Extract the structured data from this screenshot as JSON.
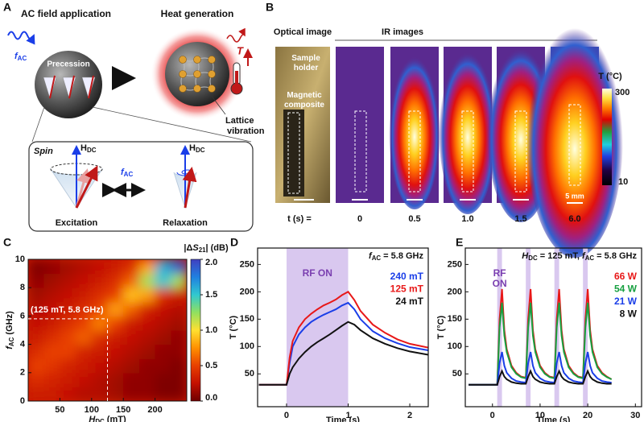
{
  "panel_a": {
    "label": "A",
    "left_title": "AC field application",
    "right_title": "Heat generation",
    "field": [
      "f",
      "AC"
    ],
    "sphere_label": "Precession",
    "temperature": "T",
    "lattice": [
      "Lattice",
      "vibration"
    ],
    "spin": "Spin",
    "h_left": [
      "H",
      "DC"
    ],
    "h_right": [
      "H",
      "DC"
    ],
    "f_center": [
      "f",
      "AC"
    ],
    "excitation": "Excitation",
    "relaxation": "Relaxation"
  },
  "panel_b": {
    "label": "B",
    "optical_title": "Optical image",
    "ir_title": "IR images",
    "holder": [
      "Sample",
      "holder"
    ],
    "composite": [
      "Magnetic",
      "composite"
    ],
    "colorbar_title": "T (°C)",
    "colorbar_max": "300",
    "colorbar_min": "10",
    "scale": "5 mm",
    "time_label": "t (s) =",
    "times": [
      "0",
      "0.5",
      "1.0",
      "1.5",
      "6.0"
    ]
  },
  "chart_data": [
    {
      "type": "heatmap",
      "panel": "C",
      "xlabel": [
        "H",
        "DC",
        " (mT)"
      ],
      "ylabel": [
        "f",
        "AC",
        " (GHz)"
      ],
      "xlim": [
        0,
        250
      ],
      "ylim": [
        0,
        10
      ],
      "xticks": [
        50,
        100,
        150,
        200
      ],
      "yticks": [
        0,
        2,
        4,
        6,
        8,
        10
      ],
      "xbins": [
        0,
        25,
        50,
        75,
        100,
        125,
        150,
        175,
        200,
        225,
        250
      ],
      "ybins": [
        0,
        1,
        2,
        3,
        4,
        5,
        6,
        7,
        8,
        9,
        10
      ],
      "z": [
        [
          0.3,
          0.3,
          0.25,
          0.2,
          0.2,
          0.15,
          0.1,
          0.1,
          0.05,
          0.05
        ],
        [
          0.4,
          0.35,
          0.3,
          0.25,
          0.2,
          0.15,
          0.1,
          0.1,
          0.05,
          0.05
        ],
        [
          0.5,
          0.45,
          0.35,
          0.3,
          0.25,
          0.2,
          0.15,
          0.1,
          0.1,
          0.05
        ],
        [
          0.4,
          0.5,
          0.5,
          0.35,
          0.3,
          0.25,
          0.2,
          0.15,
          0.1,
          0.1
        ],
        [
          0.3,
          0.4,
          0.5,
          0.6,
          0.4,
          0.3,
          0.25,
          0.2,
          0.15,
          0.1
        ],
        [
          0.25,
          0.3,
          0.4,
          0.5,
          0.7,
          0.5,
          0.3,
          0.25,
          0.2,
          0.15
        ],
        [
          0.2,
          0.25,
          0.3,
          0.4,
          0.5,
          0.8,
          0.6,
          0.35,
          0.25,
          0.2
        ],
        [
          0.15,
          0.2,
          0.25,
          0.3,
          0.4,
          0.5,
          0.9,
          0.8,
          0.4,
          0.3
        ],
        [
          0.1,
          0.15,
          0.2,
          0.25,
          0.3,
          0.4,
          0.6,
          1.2,
          1.5,
          1.2
        ],
        [
          0.05,
          0.1,
          0.15,
          0.2,
          0.25,
          0.3,
          0.4,
          0.8,
          1.6,
          1.9
        ]
      ],
      "zlim": [
        0,
        2
      ],
      "zticks": [
        {
          "value": 0,
          "label": "0.0"
        },
        {
          "value": 0.5,
          "label": "0.5"
        },
        {
          "value": 1,
          "label": "1.0"
        },
        {
          "value": 1.5,
          "label": "1.5"
        },
        {
          "value": 2,
          "label": "2.0"
        }
      ],
      "colorbar_label": [
        "|Δ",
        "S",
        "21",
        "| (dB)"
      ],
      "colormap": [
        "#6e0000",
        "#c41000",
        "#e84000",
        "#ff9000",
        "#ffe030",
        "#90e060",
        "#30c8d0",
        "#2080e0",
        "#4040c0"
      ],
      "marker": {
        "x": 125,
        "y": 5.8,
        "label": "(125 mT, 5.8 GHz)"
      }
    },
    {
      "type": "line",
      "panel": "D",
      "title": [
        "f",
        "AC",
        " = 5.8 GHz"
      ],
      "xlabel": "Time (s)",
      "ylabel": "T (°C)",
      "xlim": [
        -0.47,
        2.3
      ],
      "ylim": [
        -10,
        280
      ],
      "xticks": [
        0,
        1,
        2
      ],
      "yticks": [
        50,
        100,
        150,
        200,
        250
      ],
      "on_spans": [
        [
          0,
          1
        ]
      ],
      "on_label": [
        "RF ON"
      ],
      "on_color": "#d9c8ef",
      "legend": "upper right",
      "x": [
        -0.45,
        -0.2,
        0,
        0.05,
        0.1,
        0.2,
        0.3,
        0.4,
        0.5,
        0.6,
        0.7,
        0.8,
        0.9,
        1.0,
        1.1,
        1.2,
        1.4,
        1.6,
        1.8,
        2.0,
        2.3
      ],
      "series": [
        {
          "name": "240 mT",
          "color": "#1a3ee8",
          "values": [
            30,
            30,
            30,
            70,
            100,
            122,
            135,
            145,
            152,
            158,
            163,
            168,
            175,
            180,
            168,
            150,
            128,
            115,
            106,
            99,
            93
          ]
        },
        {
          "name": "125 mT",
          "color": "#e81818",
          "values": [
            30,
            30,
            30,
            80,
            110,
            135,
            150,
            160,
            168,
            175,
            180,
            186,
            194,
            200,
            185,
            165,
            140,
            125,
            113,
            105,
            98
          ]
        },
        {
          "name": "24 mT",
          "color": "#111111",
          "values": [
            30,
            30,
            30,
            50,
            62,
            78,
            90,
            100,
            108,
            115,
            122,
            130,
            138,
            145,
            140,
            130,
            115,
            105,
            97,
            91,
            85
          ]
        }
      ]
    },
    {
      "type": "line",
      "panel": "E",
      "title": [
        "H",
        "DC",
        " = 125 mT, ",
        "f",
        "AC",
        " = 5.8 GHz"
      ],
      "xlabel": "Time (s)",
      "ylabel": "T (°C)",
      "xlim": [
        -5.7,
        31.3
      ],
      "ylim": [
        -10,
        280
      ],
      "xticks": [
        0,
        10,
        20,
        30
      ],
      "yticks": [
        50,
        100,
        150,
        200,
        250
      ],
      "on_spans": [
        [
          1,
          2
        ],
        [
          7,
          8
        ],
        [
          13,
          14
        ],
        [
          19,
          20
        ]
      ],
      "on_label": [
        "RF",
        "ON"
      ],
      "on_color": "#d9c8ef",
      "legend": "upper right",
      "x": [
        -5,
        0,
        1,
        1.5,
        2,
        2.5,
        3,
        4,
        5,
        6,
        7,
        7.5,
        8,
        8.5,
        9,
        10,
        11,
        12,
        13,
        13.5,
        14,
        14.5,
        15,
        16,
        17,
        18,
        19,
        19.5,
        20,
        20.5,
        21,
        22,
        23,
        24,
        25
      ],
      "series": [
        {
          "name": "66 W",
          "color": "#e81818",
          "values": [
            30,
            30,
            30,
            150,
            205,
            130,
            95,
            65,
            52,
            45,
            43,
            150,
            205,
            130,
            95,
            65,
            52,
            45,
            43,
            150,
            205,
            130,
            95,
            65,
            52,
            45,
            43,
            150,
            205,
            130,
            95,
            65,
            52,
            45,
            40
          ]
        },
        {
          "name": "54 W",
          "color": "#17a040",
          "values": [
            30,
            30,
            30,
            135,
            180,
            120,
            90,
            62,
            50,
            44,
            42,
            135,
            180,
            120,
            90,
            62,
            50,
            44,
            42,
            135,
            180,
            120,
            90,
            62,
            50,
            44,
            42,
            135,
            180,
            120,
            90,
            62,
            50,
            44,
            40
          ]
        },
        {
          "name": "21 W",
          "color": "#1a3ee8",
          "values": [
            30,
            30,
            30,
            70,
            90,
            65,
            52,
            42,
            37,
            35,
            34,
            70,
            90,
            65,
            52,
            42,
            37,
            35,
            34,
            70,
            90,
            65,
            52,
            42,
            37,
            35,
            34,
            70,
            90,
            65,
            52,
            42,
            37,
            35,
            34
          ]
        },
        {
          "name": "8 W",
          "color": "#111111",
          "values": [
            30,
            30,
            30,
            45,
            55,
            45,
            40,
            35,
            33,
            32,
            32,
            45,
            55,
            45,
            40,
            35,
            33,
            32,
            32,
            45,
            55,
            45,
            40,
            35,
            33,
            32,
            32,
            45,
            55,
            45,
            40,
            35,
            33,
            32,
            32
          ]
        }
      ]
    }
  ]
}
